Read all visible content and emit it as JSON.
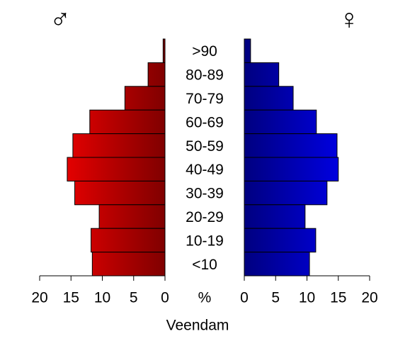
{
  "chart_data": {
    "type": "pyramid",
    "title": "Veendam",
    "categories": [
      ">90",
      "80-89",
      "70-79",
      "60-69",
      "50-59",
      "40-49",
      "30-39",
      "20-29",
      "10-19",
      "<10"
    ],
    "series": [
      {
        "name": "♂",
        "color": "#ff0000",
        "values": [
          0.3,
          2.7,
          6.4,
          12.0,
          14.7,
          15.6,
          14.4,
          10.5,
          11.8,
          11.6
        ]
      },
      {
        "name": "♀",
        "color": "#0000ff",
        "values": [
          1.0,
          5.5,
          7.8,
          11.5,
          14.8,
          15.0,
          13.2,
          9.7,
          11.4,
          10.4
        ]
      }
    ],
    "xlabel": "%",
    "xlim": [
      0,
      20
    ],
    "xticks": [
      0,
      5,
      10,
      15,
      20
    ]
  }
}
